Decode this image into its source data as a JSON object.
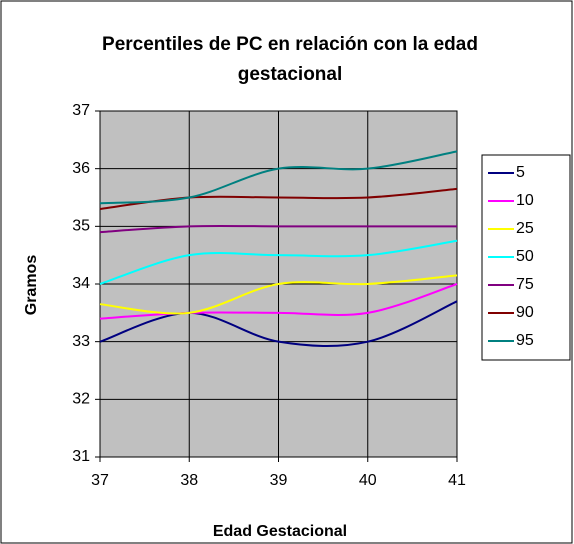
{
  "chart_data": {
    "type": "line",
    "title": "Percentiles de PC en relación con la edad gestacional",
    "x_label": "Edad Gestacional",
    "y_label": "Gramos",
    "x": [
      37,
      38,
      39,
      40,
      41
    ],
    "xlim": [
      37,
      41
    ],
    "xticks": [
      37,
      38,
      39,
      40,
      41
    ],
    "ylim": [
      31,
      37
    ],
    "yticks": [
      31,
      32,
      33,
      34,
      35,
      36,
      37
    ],
    "grid": true,
    "smooth": true,
    "legend": "right",
    "series": [
      {
        "name": "5",
        "color": "#000080",
        "values": [
          33.0,
          33.5,
          33.0,
          33.0,
          33.7
        ]
      },
      {
        "name": "10",
        "color": "#ff00ff",
        "values": [
          33.4,
          33.5,
          33.5,
          33.5,
          34.0
        ]
      },
      {
        "name": "25",
        "color": "#ffff00",
        "values": [
          33.65,
          33.5,
          34.0,
          34.0,
          34.15
        ]
      },
      {
        "name": "50",
        "color": "#00ffff",
        "values": [
          34.0,
          34.5,
          34.5,
          34.5,
          34.75
        ]
      },
      {
        "name": "75",
        "color": "#800080",
        "values": [
          34.9,
          35.0,
          35.0,
          35.0,
          35.0
        ]
      },
      {
        "name": "90",
        "color": "#800000",
        "values": [
          35.3,
          35.5,
          35.5,
          35.5,
          35.65
        ]
      },
      {
        "name": "95",
        "color": "#008080",
        "values": [
          35.4,
          35.5,
          36.0,
          36.0,
          36.3
        ]
      }
    ]
  }
}
